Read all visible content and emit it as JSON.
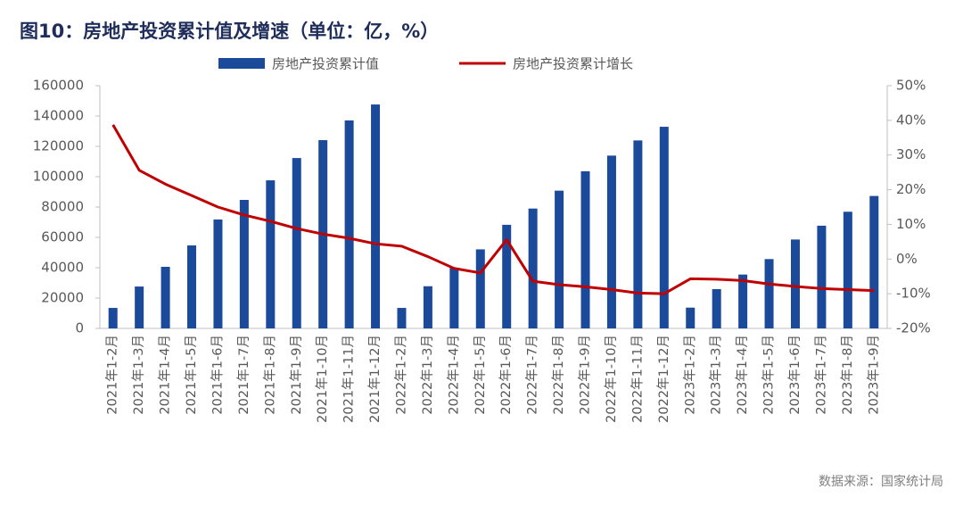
{
  "chart_data": {
    "type": "bar-line",
    "title": "图10：房地产投资累计值及增速（单位：亿，%）",
    "source": "数据来源：国家统计局",
    "categories": [
      "2021年1-2月",
      "2021年1-3月",
      "2021年1-4月",
      "2021年1-5月",
      "2021年1-6月",
      "2021年1-7月",
      "2021年1-8月",
      "2021年1-9月",
      "2021年1-10月",
      "2021年1-11月",
      "2021年1-12月",
      "2022年1-2月",
      "2022年1-3月",
      "2022年1-4月",
      "2022年1-5月",
      "2022年1-6月",
      "2022年1-7月",
      "2022年1-8月",
      "2022年1-9月",
      "2022年1-10月",
      "2022年1-11月",
      "2022年1-12月",
      "2023年1-2月",
      "2023年1-3月",
      "2023年1-4月",
      "2023年1-5月",
      "2023年1-6月",
      "2023年1-7月",
      "2023年1-8月",
      "2023年1-9月"
    ],
    "series": [
      {
        "name": "房地产投资累计值",
        "type": "bar",
        "color": "#1b4a9b",
        "values": [
          13500,
          27600,
          40600,
          54700,
          71800,
          84700,
          97600,
          112300,
          124100,
          137100,
          147600,
          13500,
          27800,
          39900,
          52100,
          68300,
          79000,
          90800,
          103600,
          113900,
          123900,
          132900,
          13700,
          25900,
          35500,
          45700,
          58600,
          67700,
          76900,
          87300
        ]
      },
      {
        "name": "房地产投资累计增长",
        "type": "line",
        "axis": "y2",
        "color": "#c00000",
        "values": [
          38.7,
          25.6,
          21.6,
          18.3,
          15.0,
          12.7,
          10.9,
          8.8,
          7.2,
          6.0,
          4.4,
          3.7,
          0.7,
          -2.7,
          -4.0,
          5.6,
          -6.4,
          -7.4,
          -8.0,
          -8.8,
          -9.8,
          -10.0,
          -5.7,
          -5.8,
          -6.2,
          -7.2,
          -7.9,
          -8.5,
          -8.8,
          -9.1
        ]
      }
    ],
    "ylim": [
      0,
      160000
    ],
    "yticks": [
      0,
      20000,
      40000,
      60000,
      80000,
      100000,
      120000,
      140000,
      160000
    ],
    "y2lim": [
      -20,
      50
    ],
    "y2ticks": [
      {
        "value": -20,
        "label": "-20%"
      },
      {
        "value": -10,
        "label": "-10%"
      },
      {
        "value": 0,
        "label": "0%"
      },
      {
        "value": 10,
        "label": "10%"
      },
      {
        "value": 20,
        "label": "20%"
      },
      {
        "value": 30,
        "label": "30%"
      },
      {
        "value": 40,
        "label": "40%"
      },
      {
        "value": 50,
        "label": "50%"
      }
    ]
  }
}
